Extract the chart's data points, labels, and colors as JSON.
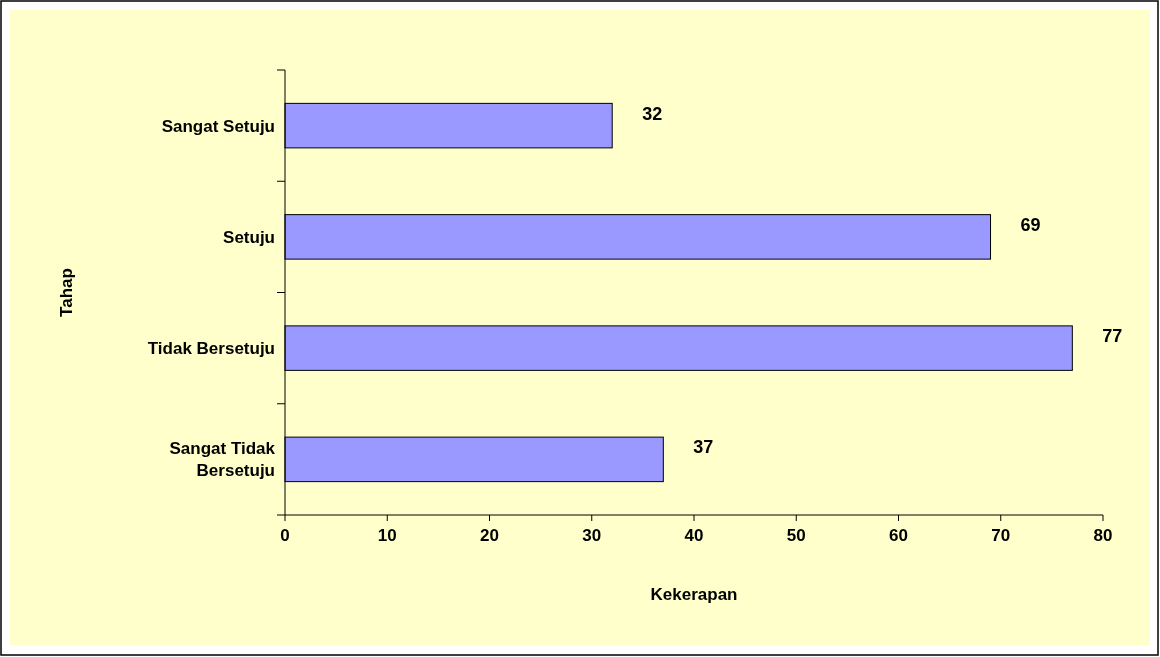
{
  "chart_data": {
    "type": "bar",
    "orientation": "horizontal",
    "xlabel": "Kekerapan",
    "ylabel": "Tahap",
    "categories": [
      "Sangat Setuju",
      "Setuju",
      "Tidak Bersetuju",
      "Sangat Tidak Bersetuju"
    ],
    "values": [
      32,
      69,
      77,
      37
    ],
    "color": "#9999ff",
    "xlim": [
      0,
      80
    ],
    "xticks": [
      0,
      10,
      20,
      30,
      40,
      50,
      60,
      70,
      80
    ],
    "data_labels": true
  }
}
